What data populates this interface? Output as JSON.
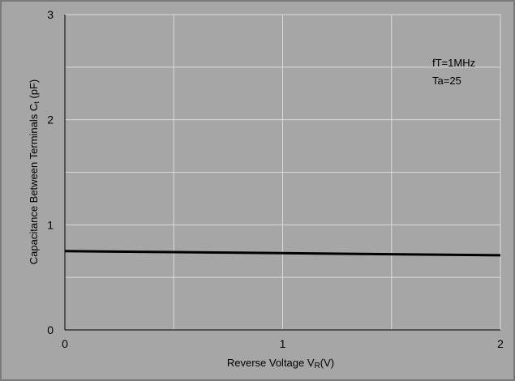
{
  "chart_data": {
    "type": "line",
    "xlabel": "Reverse Voltage  V",
    "xlabel_sub": "R",
    "xlabel_unit": "(V)",
    "ylabel": "Capacitance Between Terminals C",
    "ylabel_sub": "t",
    "ylabel_unit": " (pF)",
    "xlim": [
      0,
      2
    ],
    "ylim": [
      0,
      3
    ],
    "x_ticks": [
      0,
      1,
      2
    ],
    "y_ticks": [
      0,
      1,
      2,
      3
    ],
    "x_tick_labels": [
      "0",
      "1",
      "2"
    ],
    "y_tick_labels": [
      "0",
      "1",
      "2",
      "3"
    ],
    "grid": true,
    "annotations": [
      "fT=1MHz",
      "Ta=25"
    ],
    "series": [
      {
        "x": [
          0,
          0.5,
          1.0,
          1.5,
          2.0
        ],
        "y": [
          0.75,
          0.74,
          0.73,
          0.72,
          0.71
        ]
      }
    ],
    "colors": {
      "background": "#a6a6a6",
      "grid": "#d9d9d9",
      "line": "#000000"
    }
  }
}
